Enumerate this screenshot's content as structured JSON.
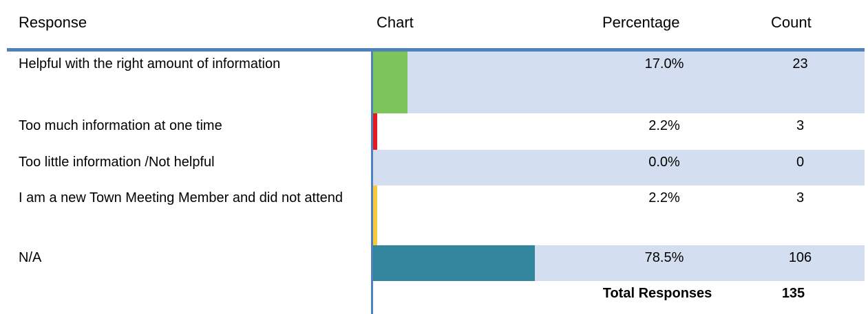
{
  "header": {
    "response": "Response",
    "chart": "Chart",
    "percentage": "Percentage",
    "count": "Count"
  },
  "table": {
    "rows": [
      {
        "response": "Helpful with the right amount of information",
        "percentage": {
          "value": 17.0,
          "label": "17.0%"
        },
        "count": 23,
        "color": "#7dc55a"
      },
      {
        "response": "Too much information at one time",
        "percentage": {
          "value": 2.2,
          "label": "2.2%"
        },
        "count": 3,
        "color": "#e31b23"
      },
      {
        "response": "Too little information  /Not helpful",
        "percentage": {
          "value": 0.0,
          "label": "0.0%"
        },
        "count": 0,
        "color": "#31859c"
      },
      {
        "response": "I am a new Town Meeting Member and did not attend",
        "percentage": {
          "value": 2.2,
          "label": "2.2%"
        },
        "count": 3,
        "color": "#f7c93c"
      },
      {
        "response": "N/A",
        "percentage": {
          "value": 78.5,
          "label": "78.5%"
        },
        "count": 106,
        "color": "#31859c"
      }
    ],
    "total": {
      "label": "Total Responses",
      "count": 135
    }
  }
}
